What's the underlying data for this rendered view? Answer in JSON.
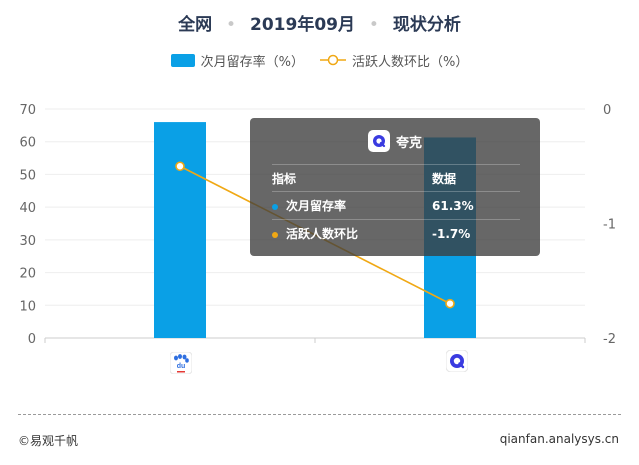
{
  "title": {
    "scope": "全网",
    "period": "2019年09月",
    "name": "现状分析",
    "separator": "•"
  },
  "legend": {
    "bar_label": "次月留存率（%）",
    "line_label": "活跃人数环比（%）"
  },
  "colors": {
    "bar": "#0aa0e6",
    "line": "#f0a814",
    "title": "#2b3a55"
  },
  "chart_data": {
    "type": "bar",
    "categories": [
      "百度",
      "夸克"
    ],
    "series": [
      {
        "name": "次月留存率（%）",
        "type": "bar",
        "axis": "left",
        "values": [
          66,
          61.3
        ]
      },
      {
        "name": "活跃人数环比（%）",
        "type": "line",
        "axis": "right",
        "values": [
          -0.5,
          -1.7
        ]
      }
    ],
    "y_left": {
      "ticks": [
        "70",
        "60",
        "50",
        "40",
        "30",
        "20",
        "10",
        "0"
      ],
      "range": [
        0,
        70
      ]
    },
    "y_right": {
      "ticks": [
        "0",
        "-1",
        "-2"
      ],
      "range": [
        -2,
        0
      ]
    },
    "grid": true,
    "legend_position": "top-center"
  },
  "tooltip": {
    "app_name": "夸克",
    "header_metric": "指标",
    "header_value": "数据",
    "rows": [
      {
        "label": "次月留存率",
        "value": "61.3%"
      },
      {
        "label": "活跃人数环比",
        "value": "-1.7%"
      }
    ]
  },
  "footer": {
    "left": "©易观千帆",
    "right": "qianfan.analysys.cn"
  }
}
